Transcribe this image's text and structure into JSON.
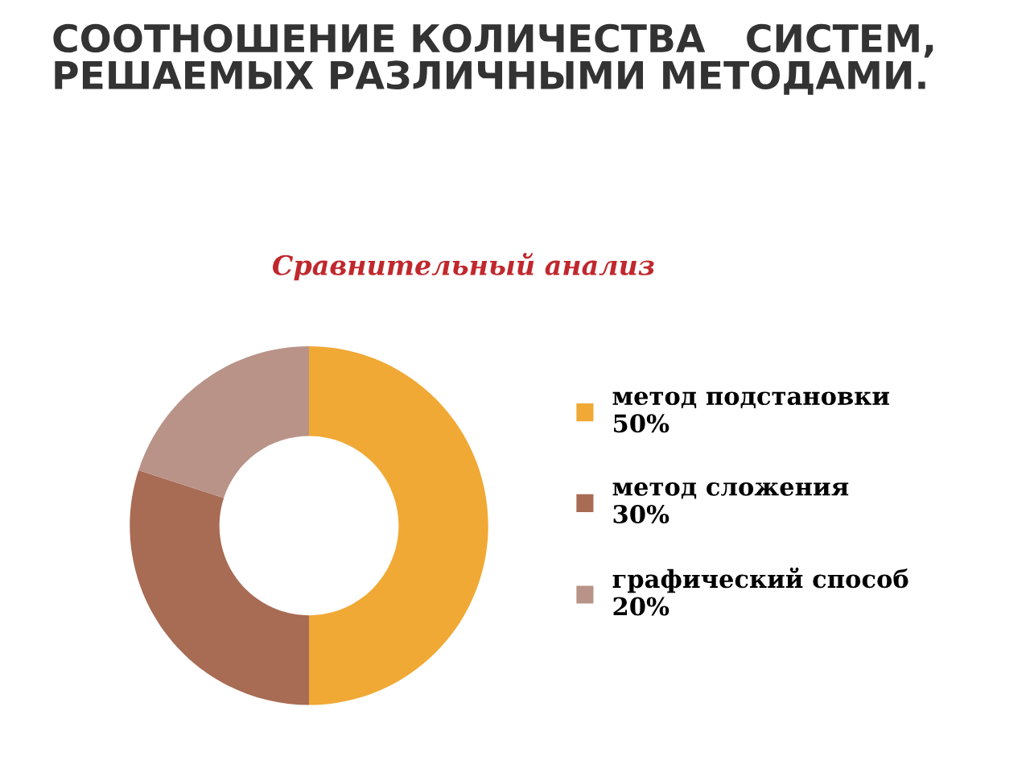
{
  "chart_data": {
    "type": "donut",
    "title": "СООТНОШЕНИЕ КОЛИЧЕСТВА   СИСТЕМ,\nРЕШАЕМЫХ РАЗЛИЧНЫМИ МЕТОДАМИ.",
    "subtitle": "Сравнительный анализ",
    "categories": [
      "метод подстановки",
      "метод сложения",
      "графический способ"
    ],
    "values": [
      50,
      30,
      20
    ],
    "value_labels": [
      "50%",
      "30%",
      "20%"
    ],
    "colors": [
      "#f0a935",
      "#a86b54",
      "#b99388"
    ],
    "legend": "right"
  }
}
